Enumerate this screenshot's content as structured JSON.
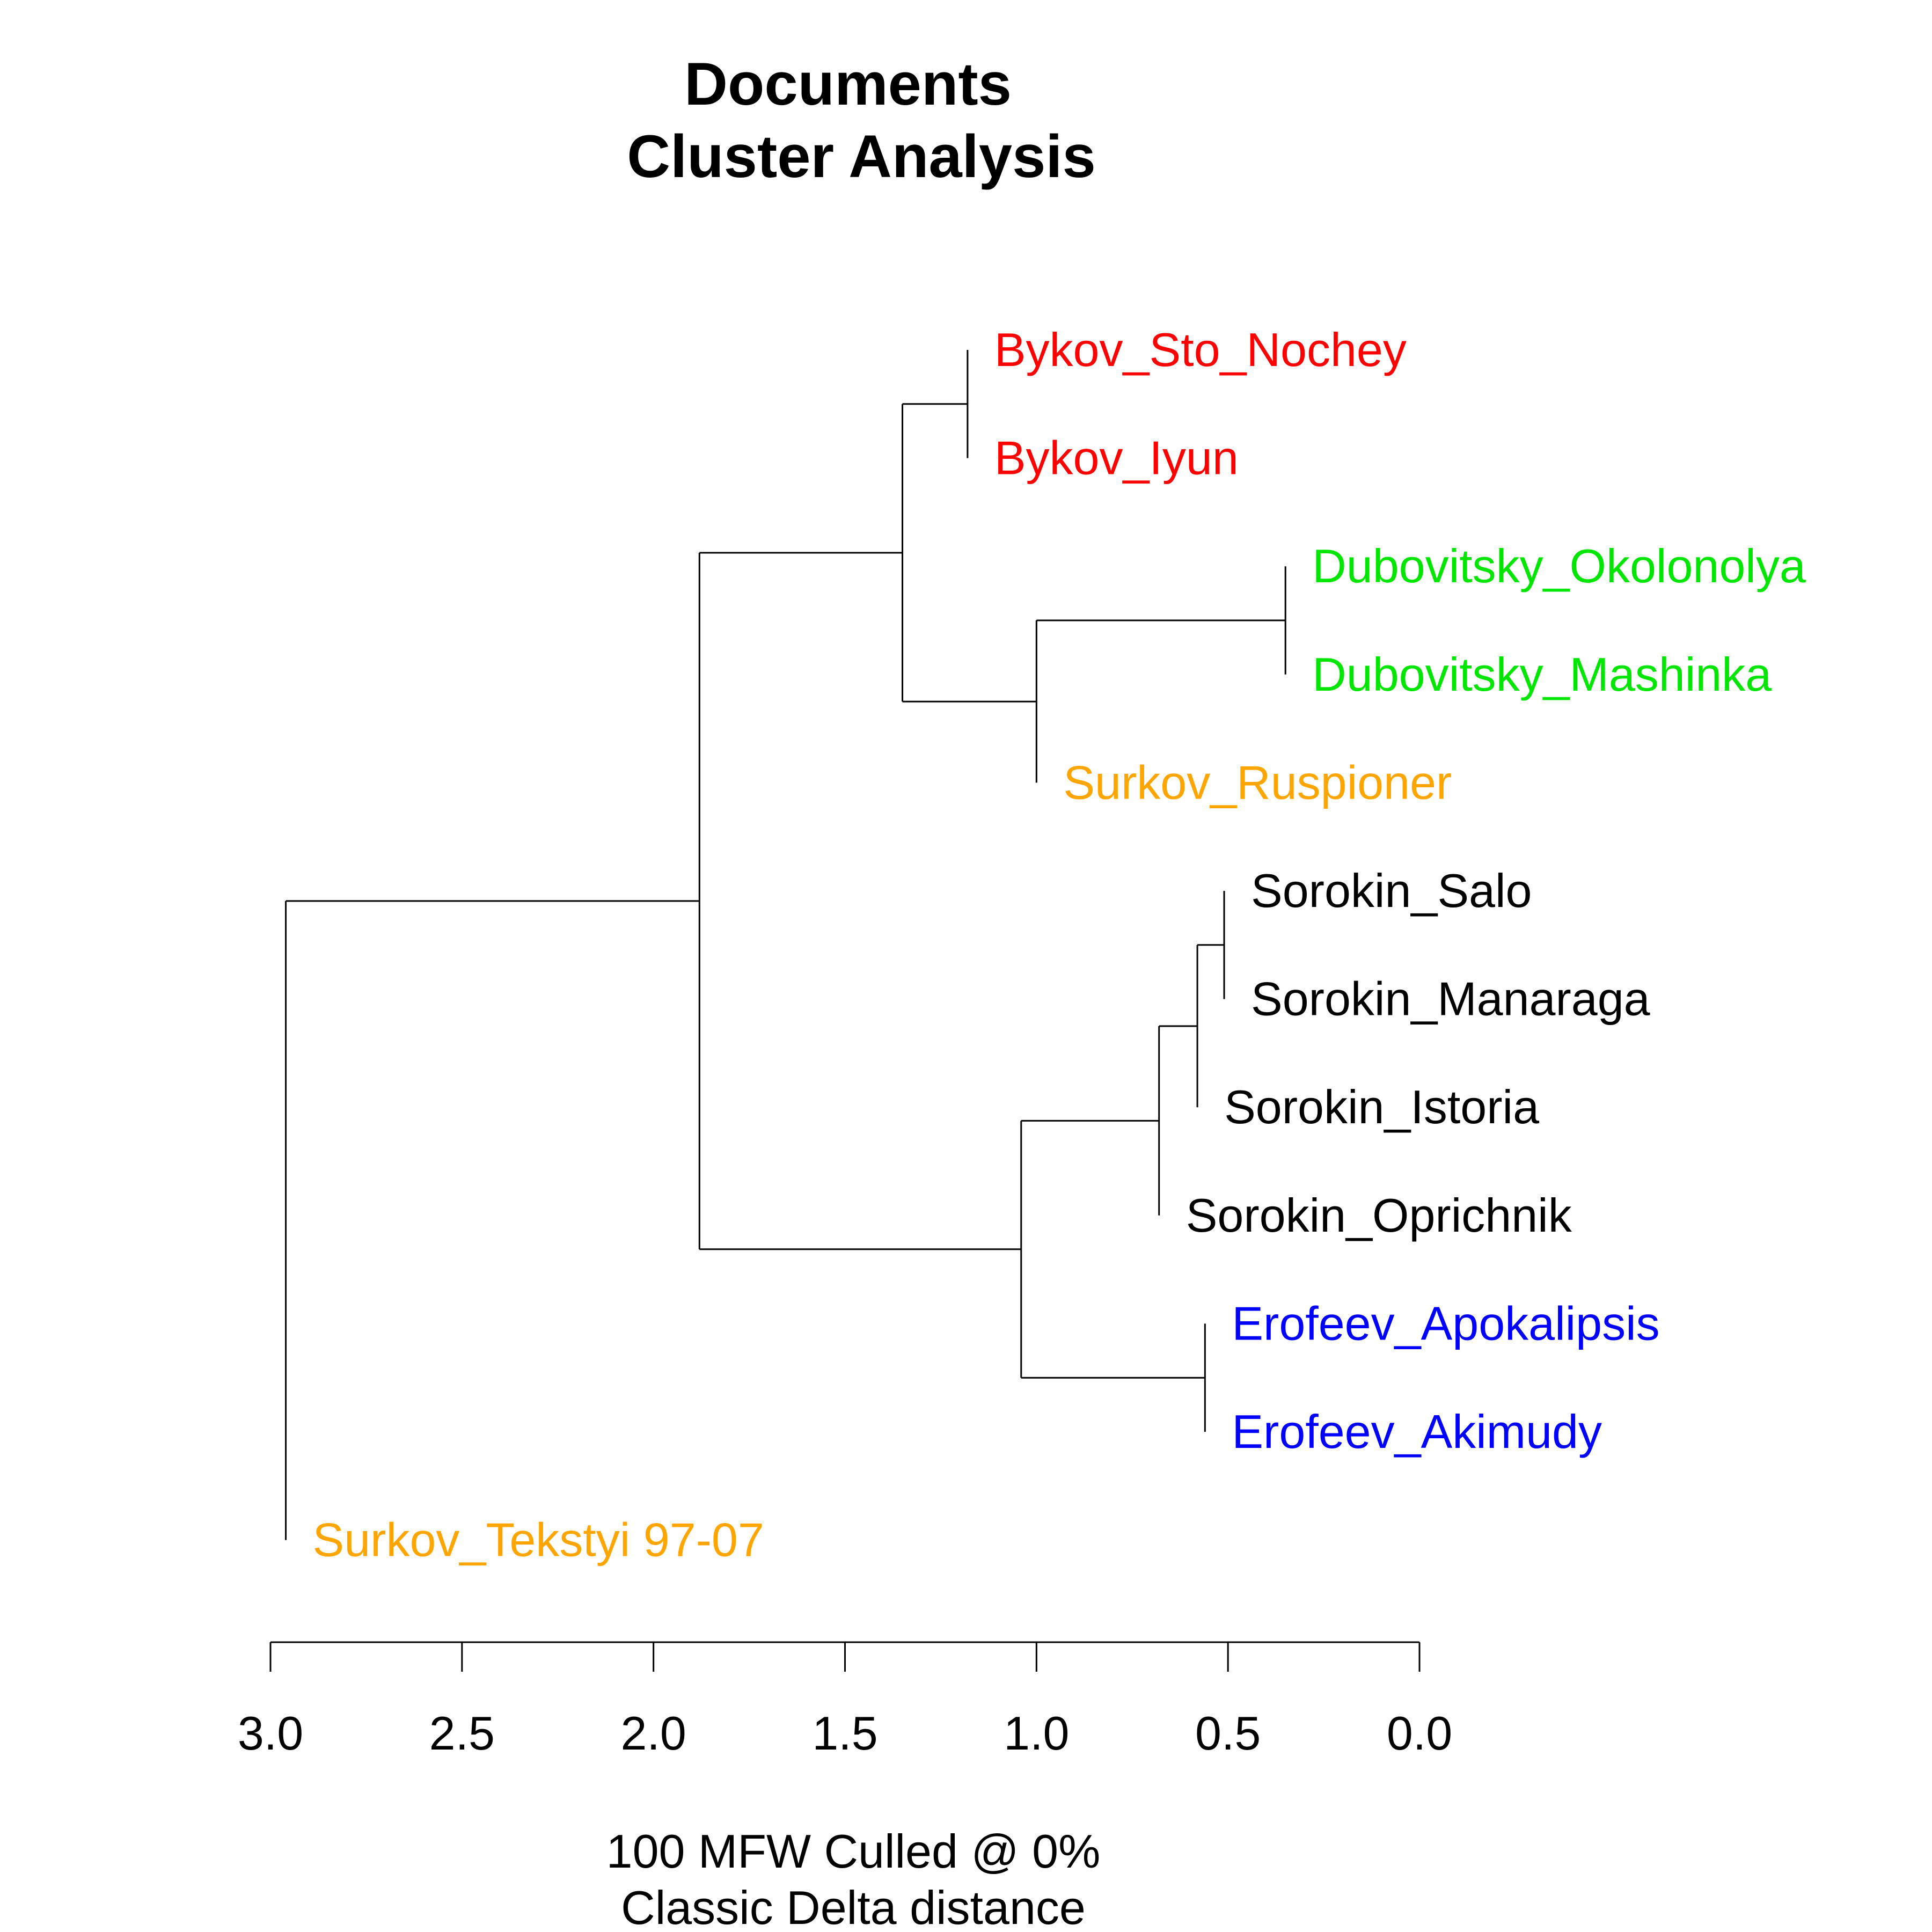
{
  "chart_data": {
    "type": "dendrogram",
    "title_lines": [
      "Documents",
      "Cluster Analysis"
    ],
    "xlabel_lines": [
      "100 MFW  Culled @ 0%",
      "Classic Delta distance"
    ],
    "xlim": [
      3.0,
      0.0
    ],
    "ticks": [
      "3.0",
      "2.5",
      "2.0",
      "1.5",
      "1.0",
      "0.5",
      "0.0"
    ],
    "leaves": [
      {
        "label": "Bykov_Sto_Nochey",
        "color": "#ff0000"
      },
      {
        "label": "Bykov_Iyun",
        "color": "#ff0000"
      },
      {
        "label": "Dubovitsky_Okolonolya",
        "color": "#00e600"
      },
      {
        "label": "Dubovitsky_Mashinka",
        "color": "#00e600"
      },
      {
        "label": "Surkov_Ruspioner",
        "color": "#ffa500"
      },
      {
        "label": "Sorokin_Salo",
        "color": "#000000"
      },
      {
        "label": "Sorokin_Manaraga",
        "color": "#000000"
      },
      {
        "label": "Sorokin_Istoria",
        "color": "#000000"
      },
      {
        "label": "Sorokin_Oprichnik",
        "color": "#000000"
      },
      {
        "label": "Erofeev_Apokalipsis",
        "color": "#0000ff"
      },
      {
        "label": "Erofeev_Akimudy",
        "color": "#0000ff"
      },
      {
        "label": "Surkov_Tekstyi 97-07",
        "color": "#ffa500"
      }
    ],
    "merges": [
      {
        "id": "m1",
        "children": [
          0,
          1
        ],
        "height": 1.18
      },
      {
        "id": "m2",
        "children": [
          2,
          3
        ],
        "height": 0.35
      },
      {
        "id": "m3",
        "children": [
          "m2",
          4
        ],
        "height": 1.0
      },
      {
        "id": "m4",
        "children": [
          "m1",
          "m3"
        ],
        "height": 1.35
      },
      {
        "id": "m5",
        "children": [
          5,
          6
        ],
        "height": 0.51
      },
      {
        "id": "m6",
        "children": [
          "m5",
          7
        ],
        "height": 0.58
      },
      {
        "id": "m7",
        "children": [
          "m6",
          8
        ],
        "height": 0.68
      },
      {
        "id": "m8",
        "children": [
          9,
          10
        ],
        "height": 0.56
      },
      {
        "id": "m9",
        "children": [
          "m7",
          "m8"
        ],
        "height": 1.04
      },
      {
        "id": "m10",
        "children": [
          "m4",
          "m9"
        ],
        "height": 1.88
      },
      {
        "id": "m11",
        "children": [
          "m10",
          11
        ],
        "height": 2.96
      }
    ],
    "leaf_heights": [
      1.18,
      1.18,
      0.35,
      0.35,
      1.0,
      0.51,
      0.51,
      0.58,
      0.68,
      0.56,
      0.56,
      2.96
    ]
  }
}
